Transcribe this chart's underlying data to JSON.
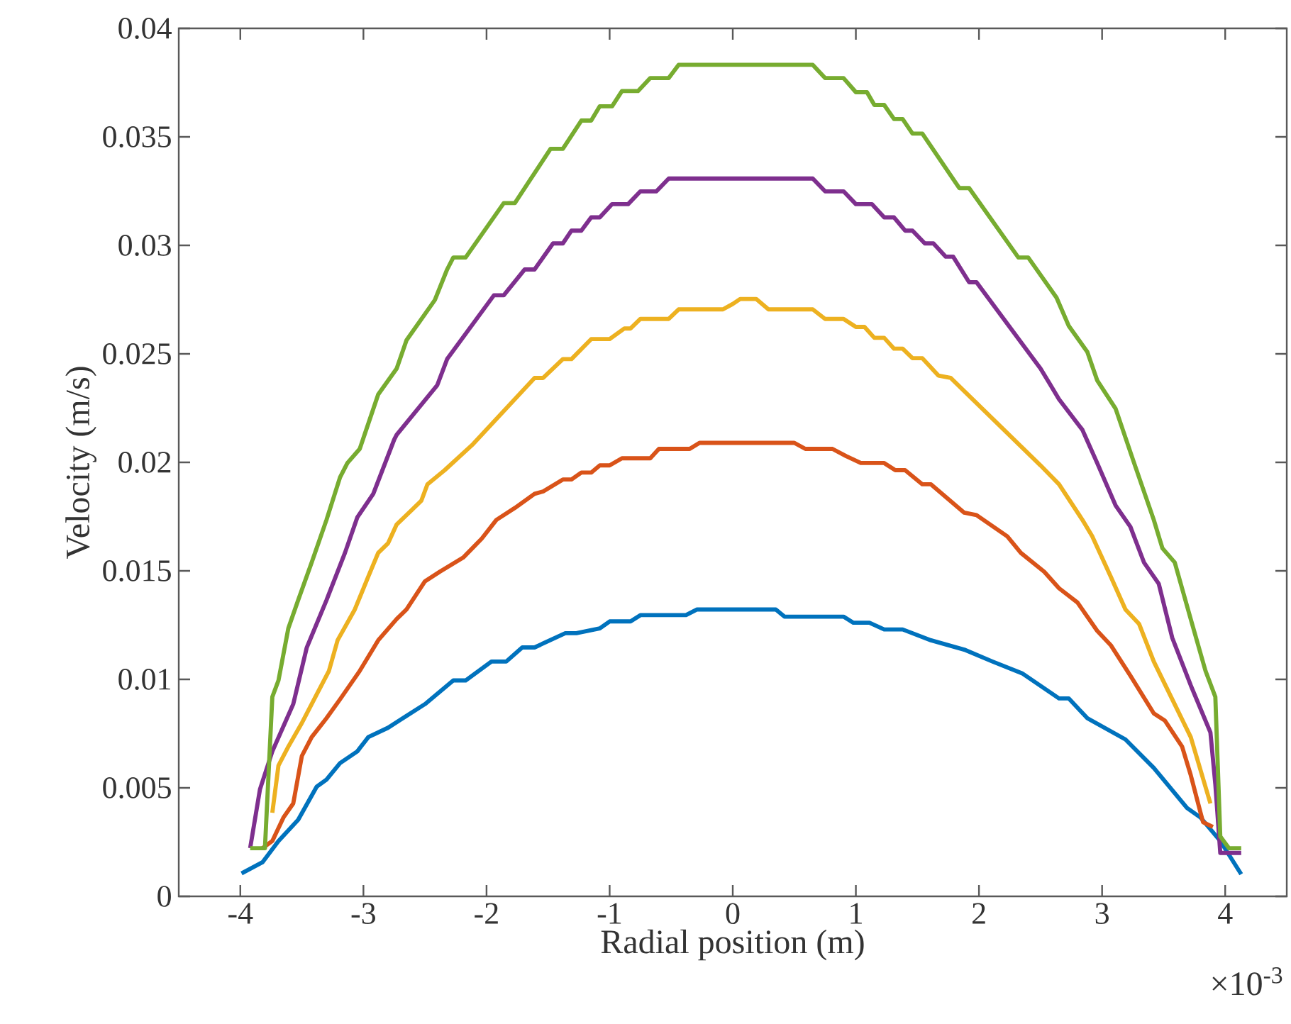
{
  "chart_data": {
    "type": "line",
    "xlabel": "Radial position (m)",
    "ylabel": "Velocity (m/s)",
    "annotations": [
      "×10$^{-3}$"
    ],
    "xlim": [
      -4.5,
      4.5
    ],
    "xticks": [
      -4,
      -3,
      -2,
      -1,
      0,
      1,
      2,
      3,
      4
    ],
    "ylim": [
      0,
      0.04
    ],
    "yticks": [
      0,
      0.005,
      0.01,
      0.015,
      0.02,
      0.025,
      0.03,
      0.035,
      0.04
    ],
    "grid": false,
    "marker": "none",
    "line_style": "solid",
    "series": [
      {
        "color": "#0072bd",
        "x": [
          -3.99,
          -3.82,
          -3.69,
          -3.53,
          -3.38,
          -3.3,
          -3.19,
          -3.05,
          -2.96,
          -2.8,
          -2.65,
          -2.5,
          -2.27,
          -2.17,
          -1.96,
          -1.84,
          -1.71,
          -1.61,
          -1.36,
          -1.27,
          -1.08,
          -1.0,
          -0.83,
          -0.75,
          -0.38,
          -0.29,
          0.35,
          0.42,
          0.9,
          0.98,
          1.11,
          1.23,
          1.38,
          1.61,
          1.88,
          2.11,
          2.35,
          2.65,
          2.73,
          2.88,
          3.19,
          3.42,
          3.69,
          3.8,
          3.96,
          4.13
        ],
        "values": [
          0.00106,
          0.00157,
          0.00255,
          0.00353,
          0.00505,
          0.00538,
          0.00614,
          0.00668,
          0.00734,
          0.00777,
          0.00832,
          0.00886,
          0.00995,
          0.00995,
          0.01082,
          0.01082,
          0.01147,
          0.01147,
          0.01213,
          0.01213,
          0.01235,
          0.01267,
          0.01267,
          0.01296,
          0.01296,
          0.01322,
          0.01322,
          0.01289,
          0.01289,
          0.01261,
          0.01261,
          0.0123,
          0.0123,
          0.0118,
          0.01137,
          0.01082,
          0.01028,
          0.00912,
          0.00912,
          0.00821,
          0.00723,
          0.00592,
          0.00407,
          0.00363,
          0.00255,
          0.00102
        ]
      },
      {
        "color": "#d95319",
        "x": [
          -3.82,
          -3.74,
          -3.65,
          -3.57,
          -3.5,
          -3.42,
          -3.3,
          -3.19,
          -3.03,
          -2.88,
          -2.73,
          -2.65,
          -2.5,
          -2.38,
          -2.19,
          -2.04,
          -1.92,
          -1.77,
          -1.61,
          -1.54,
          -1.38,
          -1.31,
          -1.23,
          -1.15,
          -1.08,
          -1.0,
          -0.9,
          -0.67,
          -0.6,
          -0.35,
          -0.27,
          0.5,
          0.59,
          0.81,
          0.92,
          1.04,
          1.23,
          1.32,
          1.4,
          1.54,
          1.61,
          1.88,
          1.98,
          2.23,
          2.34,
          2.53,
          2.65,
          2.8,
          2.96,
          3.07,
          3.23,
          3.42,
          3.51,
          3.65,
          3.72,
          3.8,
          3.82,
          3.9
        ],
        "values": [
          0.00222,
          0.00255,
          0.00363,
          0.00428,
          0.00647,
          0.00734,
          0.00821,
          0.00908,
          0.01039,
          0.0118,
          0.01278,
          0.01322,
          0.01452,
          0.01496,
          0.01561,
          0.01648,
          0.01735,
          0.0179,
          0.01855,
          0.01866,
          0.01921,
          0.01921,
          0.01953,
          0.01953,
          0.01986,
          0.01986,
          0.02019,
          0.02019,
          0.02062,
          0.02062,
          0.0209,
          0.0209,
          0.02062,
          0.02062,
          0.02029,
          0.01997,
          0.01997,
          0.01964,
          0.01964,
          0.01899,
          0.01899,
          0.01768,
          0.01757,
          0.01659,
          0.01583,
          0.01496,
          0.0142,
          0.01354,
          0.01224,
          0.01158,
          0.01017,
          0.00843,
          0.0081,
          0.0069,
          0.00559,
          0.00385,
          0.00342,
          0.0032
        ]
      },
      {
        "color": "#edb120",
        "x": [
          -3.74,
          -3.69,
          -3.61,
          -3.5,
          -3.38,
          -3.28,
          -3.21,
          -3.07,
          -2.96,
          -2.88,
          -2.8,
          -2.73,
          -2.61,
          -2.53,
          -2.48,
          -2.34,
          -2.11,
          -1.61,
          -1.54,
          -1.38,
          -1.31,
          -1.15,
          -1.0,
          -0.88,
          -0.83,
          -0.75,
          -0.52,
          -0.44,
          -0.08,
          0.0,
          0.06,
          0.19,
          0.29,
          0.65,
          0.75,
          0.9,
          1.0,
          1.07,
          1.15,
          1.23,
          1.31,
          1.38,
          1.46,
          1.54,
          1.67,
          1.77,
          2.5,
          2.65,
          2.84,
          2.92,
          3.07,
          3.19,
          3.3,
          3.42,
          3.57,
          3.72,
          3.88
        ],
        "values": [
          0.00385,
          0.00603,
          0.0069,
          0.00799,
          0.0093,
          0.01039,
          0.0118,
          0.01322,
          0.01474,
          0.01583,
          0.01627,
          0.01714,
          0.01779,
          0.01823,
          0.01899,
          0.01964,
          0.02084,
          0.02389,
          0.02389,
          0.02476,
          0.02476,
          0.02568,
          0.02568,
          0.02617,
          0.02617,
          0.02661,
          0.02661,
          0.02705,
          0.02705,
          0.0273,
          0.02753,
          0.02753,
          0.02705,
          0.02705,
          0.02661,
          0.02661,
          0.02624,
          0.02624,
          0.02574,
          0.02574,
          0.02524,
          0.02524,
          0.0248,
          0.0248,
          0.024,
          0.02389,
          0.01986,
          0.01899,
          0.01735,
          0.01659,
          0.01474,
          0.01322,
          0.01256,
          0.01082,
          0.00908,
          0.00734,
          0.00428
        ]
      },
      {
        "color": "#7e2f8e",
        "x": [
          -3.92,
          -3.84,
          -3.74,
          -3.57,
          -3.46,
          -3.3,
          -3.15,
          -3.05,
          -2.92,
          -2.75,
          -2.73,
          -2.4,
          -2.32,
          -1.94,
          -1.86,
          -1.69,
          -1.61,
          -1.46,
          -1.38,
          -1.31,
          -1.23,
          -1.15,
          -1.08,
          -0.98,
          -0.85,
          -0.75,
          -0.62,
          -0.52,
          0.65,
          0.75,
          0.9,
          1.0,
          1.13,
          1.23,
          1.31,
          1.4,
          1.46,
          1.56,
          1.63,
          1.73,
          1.79,
          1.92,
          1.98,
          2.5,
          2.57,
          2.65,
          2.84,
          2.96,
          3.11,
          3.23,
          3.34,
          3.46,
          3.57,
          3.72,
          3.88,
          3.92,
          3.96,
          4.13
        ],
        "values": [
          0.00222,
          0.00494,
          0.00668,
          0.00886,
          0.01147,
          0.01365,
          0.01583,
          0.01746,
          0.01855,
          0.02105,
          0.02127,
          0.02356,
          0.02476,
          0.0277,
          0.0277,
          0.02889,
          0.02889,
          0.03009,
          0.03009,
          0.03068,
          0.03068,
          0.03129,
          0.03129,
          0.0319,
          0.0319,
          0.03249,
          0.03249,
          0.03308,
          0.03308,
          0.03249,
          0.03249,
          0.0319,
          0.0319,
          0.03129,
          0.03129,
          0.03068,
          0.03068,
          0.03009,
          0.03009,
          0.02948,
          0.02948,
          0.0283,
          0.0283,
          0.02432,
          0.02367,
          0.02291,
          0.0215,
          0.01997,
          0.01801,
          0.01703,
          0.01539,
          0.01441,
          0.01191,
          0.00973,
          0.00755,
          0.00516,
          0.002,
          0.002
        ]
      },
      {
        "color": "#77ac30",
        "x": [
          -3.92,
          -3.8,
          -3.74,
          -3.69,
          -3.61,
          -3.53,
          -3.42,
          -3.3,
          -3.19,
          -3.13,
          -3.03,
          -2.88,
          -2.73,
          -2.65,
          -2.42,
          -2.32,
          -2.27,
          -2.17,
          -1.86,
          -1.77,
          -1.48,
          -1.38,
          -1.23,
          -1.15,
          -1.08,
          -0.98,
          -0.9,
          -0.77,
          -0.67,
          -0.52,
          -0.44,
          0.65,
          0.75,
          0.9,
          1.0,
          1.09,
          1.15,
          1.23,
          1.31,
          1.38,
          1.46,
          1.54,
          1.84,
          1.92,
          2.32,
          2.4,
          2.63,
          2.73,
          2.88,
          2.96,
          3.11,
          3.26,
          3.42,
          3.49,
          3.59,
          3.72,
          3.84,
          3.92,
          3.96,
          4.03,
          4.13
        ],
        "values": [
          0.00222,
          0.00222,
          0.00919,
          0.00995,
          0.01235,
          0.01365,
          0.01539,
          0.01735,
          0.01931,
          0.01997,
          0.02062,
          0.02313,
          0.02432,
          0.02563,
          0.02748,
          0.02889,
          0.02944,
          0.02944,
          0.03195,
          0.03195,
          0.03445,
          0.03445,
          0.03575,
          0.03575,
          0.03641,
          0.03641,
          0.03711,
          0.03711,
          0.03771,
          0.03771,
          0.03832,
          0.03832,
          0.03771,
          0.03771,
          0.03706,
          0.03706,
          0.03647,
          0.03647,
          0.03582,
          0.03582,
          0.03515,
          0.03515,
          0.03264,
          0.03264,
          0.02944,
          0.02944,
          0.02759,
          0.02628,
          0.02509,
          0.02378,
          0.02247,
          0.01997,
          0.01735,
          0.01604,
          0.01539,
          0.01278,
          0.01039,
          0.00919,
          0.00276,
          0.00222,
          0.00222
        ]
      }
    ]
  }
}
